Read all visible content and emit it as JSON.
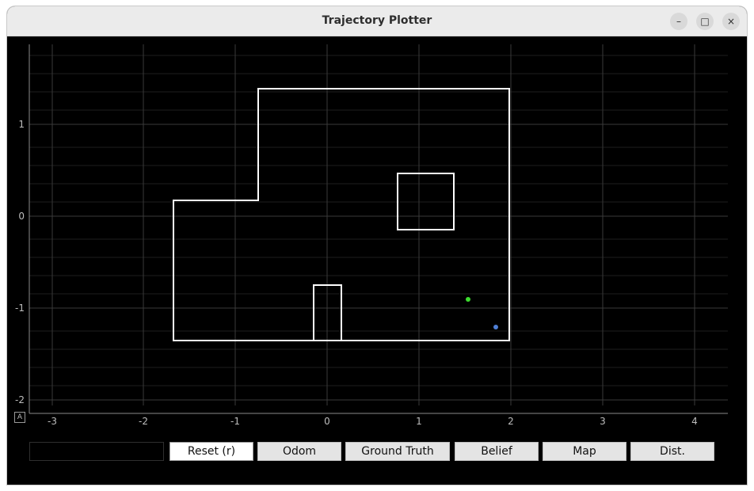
{
  "window": {
    "title": "Trajectory Plotter",
    "controls": {
      "minimize": "–",
      "maximize": "□",
      "close": "×"
    }
  },
  "plot": {
    "x_ticks": [
      "-3",
      "-2",
      "-1",
      "0",
      "1",
      "2",
      "3",
      "4"
    ],
    "y_ticks": [
      "1",
      "0",
      "-1",
      "-2"
    ],
    "auto_range_label": "A",
    "colors": {
      "background": "#000000",
      "grid": "#3a3a3a",
      "axis": "#8a8a8a",
      "map": "#ffffff",
      "ground_truth": "#3ddc2f",
      "odometry": "#4f7fd6"
    }
  },
  "toolbar": {
    "status_value": "",
    "reset_label": "Reset (r)",
    "odom_label": "Odom",
    "ground_truth_label": "Ground Truth",
    "belief_label": "Belief",
    "map_label": "Map",
    "dist_label": "Dist."
  }
}
